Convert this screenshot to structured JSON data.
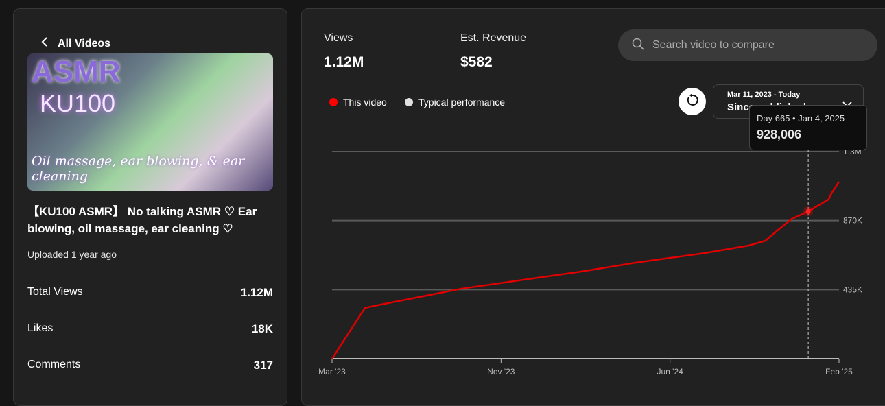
{
  "nav": {
    "back_label": "All Videos"
  },
  "video": {
    "thumbnail_text": {
      "line1": "ASMR",
      "line2": "KU100",
      "line3": "Oil massage, ear blowing, & ear cleaning"
    },
    "title": "【KU100 ASMR】 No talking ASMR ♡ Ear blowing, oil massage, ear cleaning ♡",
    "uploaded": "Uploaded 1 year ago",
    "stats": [
      {
        "label": "Total Views",
        "value": "1.12M"
      },
      {
        "label": "Likes",
        "value": "18K"
      },
      {
        "label": "Comments",
        "value": "317"
      }
    ]
  },
  "metrics": [
    {
      "label": "Views",
      "value": "1.12M"
    },
    {
      "label": "Est. Revenue",
      "value": "$582"
    }
  ],
  "search": {
    "placeholder": "Search video to compare",
    "icon": "search-icon"
  },
  "legend": [
    {
      "label": "This video",
      "color": "#ff0000"
    },
    {
      "label": "Typical performance",
      "color": "#e0e0e0"
    }
  ],
  "date_range": {
    "subtitle": "Mar 11, 2023 - Today",
    "label": "Since published"
  },
  "tooltip": {
    "header": "Day 665 • Jan 4, 2025",
    "value": "928,006"
  },
  "chart_data": {
    "type": "line",
    "x_unit": "days since publish",
    "xlim": [
      0,
      708
    ],
    "ylim": [
      0,
      1305000
    ],
    "yticks": [
      {
        "value": 435000,
        "label": "435K"
      },
      {
        "value": 870000,
        "label": "870K"
      },
      {
        "value": 1305000,
        "label": "1.3M"
      }
    ],
    "xticks": [
      {
        "value": 0,
        "label": "Mar '23"
      },
      {
        "value": 236,
        "label": "Nov '23"
      },
      {
        "value": 472,
        "label": "Jun '24"
      },
      {
        "value": 708,
        "label": "Feb '25"
      }
    ],
    "grid": true,
    "series": [
      {
        "name": "This video",
        "color": "#e00000",
        "x": [
          0,
          46,
          59,
          181,
          348,
          424,
          520,
          582,
          605,
          622,
          642,
          665,
          693,
          698,
          708
        ],
        "y": [
          0,
          320000,
          333000,
          441000,
          549000,
          605000,
          665000,
          713000,
          743000,
          808000,
          881000,
          928006,
          1002000,
          1046000,
          1115000
        ]
      }
    ],
    "highlight": {
      "x": 665,
      "y": 928006
    }
  }
}
